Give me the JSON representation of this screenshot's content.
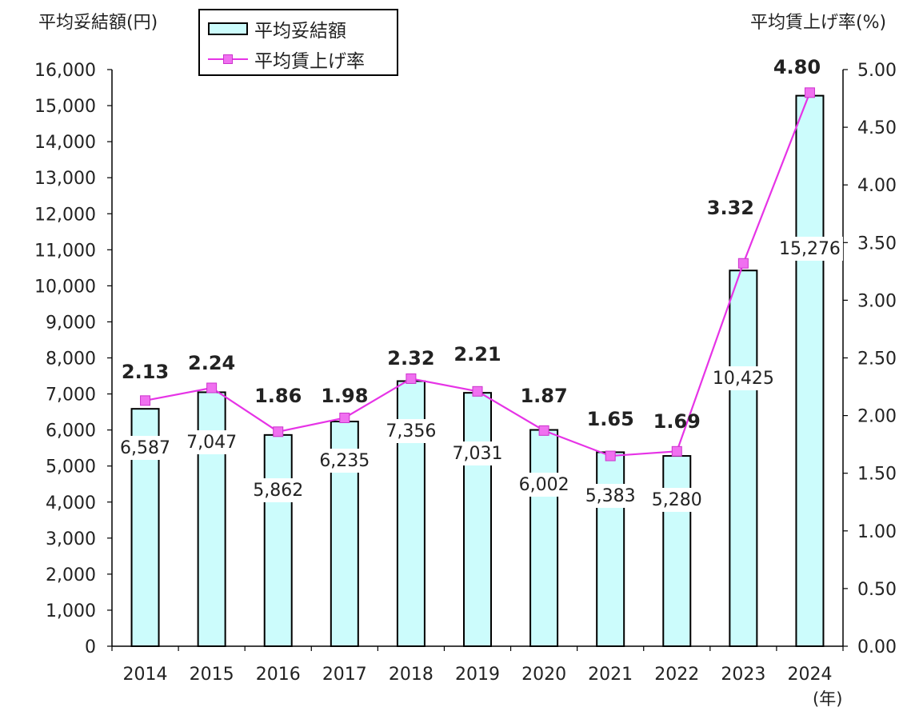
{
  "chart_data": {
    "type": "bar",
    "categories": [
      "2014",
      "2015",
      "2016",
      "2017",
      "2018",
      "2019",
      "2020",
      "2021",
      "2022",
      "2023",
      "2024"
    ],
    "series": [
      {
        "name": "平均妥結額",
        "type": "bar",
        "axis": "left",
        "values": [
          6587,
          7047,
          5862,
          6235,
          7356,
          7031,
          6002,
          5383,
          5280,
          10425,
          15276
        ],
        "labels": [
          "6,587",
          "7,047",
          "5,862",
          "6,235",
          "7,356",
          "7,031",
          "6,002",
          "5,383",
          "5,280",
          "10,425",
          "15,276"
        ],
        "color": "#ccfcfc"
      },
      {
        "name": "平均賃上げ率",
        "type": "line",
        "axis": "right",
        "values": [
          2.13,
          2.24,
          1.86,
          1.98,
          2.32,
          2.21,
          1.87,
          1.65,
          1.69,
          3.32,
          4.8
        ],
        "labels": [
          "2.13",
          "2.24",
          "1.86",
          "1.98",
          "2.32",
          "2.21",
          "1.87",
          "1.65",
          "1.69",
          "3.32",
          "4.80"
        ],
        "color": "#e633e6"
      }
    ],
    "left_axis": {
      "label": "平均妥結額(円)",
      "ylim": [
        0,
        16000
      ],
      "ticks": [
        "0",
        "1,000",
        "2,000",
        "3,000",
        "4,000",
        "5,000",
        "6,000",
        "7,000",
        "8,000",
        "9,000",
        "10,000",
        "11,000",
        "12,000",
        "13,000",
        "14,000",
        "15,000",
        "16,000"
      ]
    },
    "right_axis": {
      "label": "平均賃上げ率(%)",
      "ylim": [
        0,
        5
      ],
      "ticks": [
        "0.00",
        "0.50",
        "1.00",
        "1.50",
        "2.00",
        "2.50",
        "3.00",
        "3.50",
        "4.00",
        "4.50",
        "5.00"
      ]
    },
    "x_unit": "(年)",
    "legend_position": "top-left",
    "grid": false
  },
  "legend": {
    "bar_label": "平均妥結額",
    "line_label": "平均賃上げ率"
  }
}
